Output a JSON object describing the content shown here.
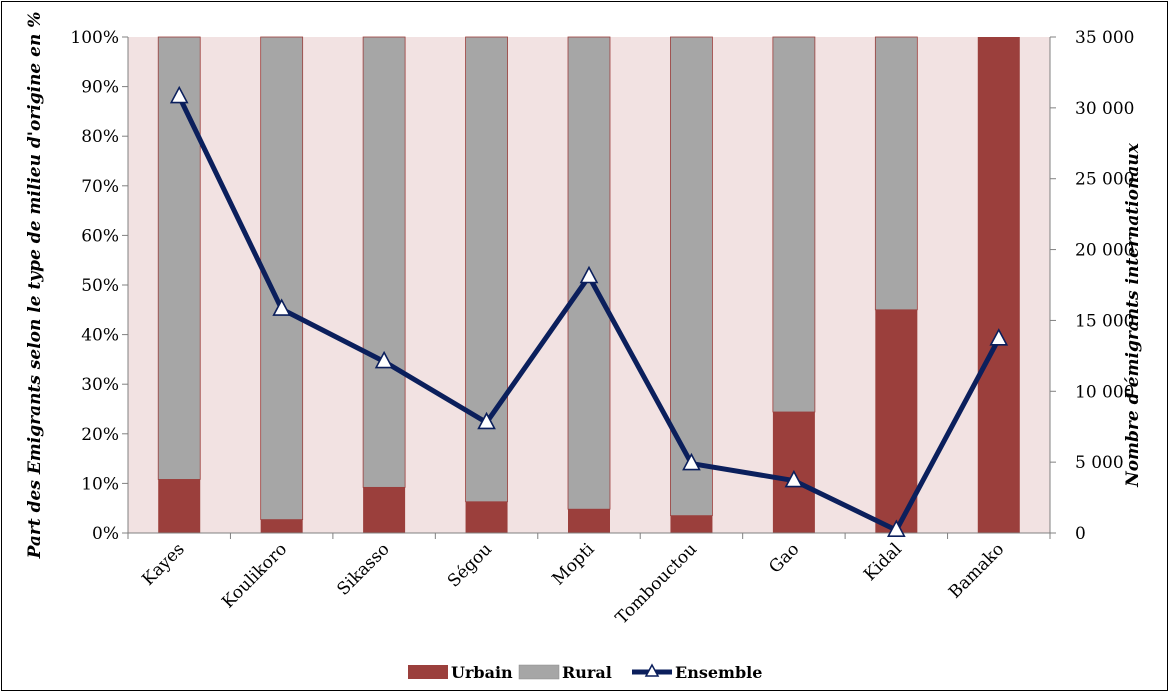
{
  "chart_data": {
    "type": "bar",
    "categories": [
      "Kayes",
      "Koulikoro",
      "Sikasso",
      "Ségou",
      "Mopti",
      "Tombouctou",
      "Gao",
      "Kidal",
      "Bamako"
    ],
    "series": [
      {
        "name": "Urbain",
        "kind": "stacked-bar",
        "axis": "left",
        "unit": "%",
        "color": "#9b3f3c",
        "values": [
          10.8,
          2.7,
          9.2,
          6.3,
          4.8,
          3.5,
          24.4,
          45.0,
          100.0
        ]
      },
      {
        "name": "Rural",
        "kind": "stacked-bar",
        "axis": "left",
        "unit": "%",
        "color": "#a6a6a6",
        "values": [
          89.2,
          97.3,
          90.8,
          93.7,
          95.2,
          96.5,
          75.6,
          55.0,
          0.0
        ]
      },
      {
        "name": "Ensemble",
        "kind": "line",
        "axis": "right",
        "color": "#0b1f5c",
        "values": [
          30800,
          15800,
          12100,
          7800,
          18100,
          4900,
          3700,
          200,
          13700
        ]
      }
    ],
    "y_left": {
      "label": "Part des Emigrants selon le type de milieu d'origine en %",
      "range": [
        0,
        100
      ],
      "ticks": [
        0,
        10,
        20,
        30,
        40,
        50,
        60,
        70,
        80,
        90,
        100
      ],
      "tick_labels": [
        "0%",
        "10%",
        "20%",
        "30%",
        "40%",
        "50%",
        "60%",
        "70%",
        "80%",
        "90%",
        "100%"
      ]
    },
    "y_right": {
      "label": "Nombre d'émigrants internationaux",
      "range": [
        0,
        35000
      ],
      "ticks": [
        0,
        5000,
        10000,
        15000,
        20000,
        25000,
        30000,
        35000
      ],
      "tick_labels": [
        "0",
        "5 000",
        "10 000",
        "15 000",
        "20 000",
        "25 000",
        "30 000",
        "35 000"
      ]
    },
    "plot_background": "#f2e2e2",
    "grid": false,
    "legend": {
      "position": "bottom",
      "entries": [
        "Urbain",
        "Rural",
        "Ensemble"
      ]
    }
  }
}
